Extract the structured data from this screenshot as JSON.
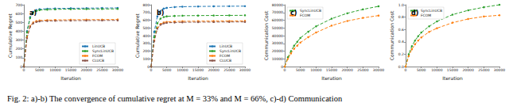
{
  "caption": "Fig. 2: a)-b) The convergence of cumulative regret at M = 33% and M = 66%, c)-d) Communication",
  "chart_data": [
    {
      "type": "line",
      "label": "a)",
      "x_label": "Iteration",
      "y_label": "Cumulative Regret",
      "x": [
        0,
        1000,
        2000,
        3000,
        4000,
        5000,
        7500,
        10000,
        15000,
        20000,
        25000,
        30000
      ],
      "xlim": [
        0,
        30000
      ],
      "xticks": [
        0,
        5000,
        10000,
        15000,
        20000,
        25000,
        30000
      ],
      "ylim": [
        0,
        700
      ],
      "yticks": [
        0,
        100,
        200,
        300,
        400,
        500,
        600,
        700
      ],
      "grid": false,
      "legend": "lower right",
      "series": [
        {
          "name": "LinUCB",
          "color": "#1f77b4",
          "marker": "circle",
          "line_style": "dashed",
          "values": [
            0,
            400,
            560,
            620,
            640,
            650,
            655,
            658,
            660,
            662,
            663,
            664
          ]
        },
        {
          "name": "SyncLinUCB",
          "color": "#2ca02c",
          "marker": "circle",
          "line_style": "dashed",
          "values": [
            0,
            390,
            550,
            610,
            630,
            640,
            645,
            648,
            650,
            651,
            652,
            653
          ]
        },
        {
          "name": "FCOM",
          "color": "#ff7f0e",
          "marker": "circle",
          "line_style": "dashed",
          "values": [
            0,
            330,
            460,
            500,
            515,
            522,
            526,
            528,
            530,
            531,
            532,
            533
          ]
        },
        {
          "name": "CLUCB",
          "color": "#8c564b",
          "marker": "circle",
          "line_style": "dashed",
          "values": [
            0,
            320,
            450,
            490,
            505,
            512,
            516,
            518,
            520,
            521,
            522,
            523
          ]
        }
      ]
    },
    {
      "type": "line",
      "label": "b)",
      "x_label": "Iteration",
      "y_label": "Cumulative Regret",
      "x": [
        0,
        1000,
        2000,
        3000,
        4000,
        5000,
        7500,
        10000,
        15000,
        20000,
        25000,
        30000
      ],
      "xlim": [
        0,
        30000
      ],
      "xticks": [
        0,
        5000,
        10000,
        15000,
        20000,
        25000,
        30000
      ],
      "ylim": [
        0,
        800
      ],
      "yticks": [
        0,
        100,
        200,
        300,
        400,
        500,
        600,
        700,
        800
      ],
      "grid": false,
      "legend": "lower right",
      "series": [
        {
          "name": "LinUCB",
          "color": "#1f77b4",
          "marker": "circle",
          "line_style": "dashed",
          "values": [
            0,
            450,
            650,
            720,
            750,
            760,
            770,
            775,
            778,
            780,
            781,
            782
          ]
        },
        {
          "name": "SyncLinUCB",
          "color": "#2ca02c",
          "marker": "circle",
          "line_style": "dashed",
          "values": [
            0,
            380,
            560,
            620,
            640,
            650,
            655,
            658,
            660,
            661,
            662,
            663
          ]
        },
        {
          "name": "FCOM",
          "color": "#ff7f0e",
          "marker": "circle",
          "line_style": "dashed",
          "values": [
            0,
            340,
            500,
            550,
            570,
            578,
            583,
            586,
            588,
            589,
            590,
            591
          ]
        },
        {
          "name": "CLUCB",
          "color": "#8c564b",
          "marker": "circle",
          "line_style": "dashed",
          "values": [
            0,
            330,
            490,
            540,
            558,
            566,
            570,
            573,
            575,
            576,
            577,
            578
          ]
        }
      ]
    },
    {
      "type": "line",
      "label": "c)",
      "x_label": "Iteration",
      "y_label": "Communication Cost",
      "x": [
        0,
        1000,
        2000,
        3000,
        4000,
        5000,
        7500,
        10000,
        15000,
        20000,
        25000,
        30000
      ],
      "xlim": [
        0,
        30000
      ],
      "xticks": [
        0,
        5000,
        10000,
        15000,
        20000,
        25000,
        30000
      ],
      "ylim": [
        0,
        80000
      ],
      "yticks": [
        0,
        10000,
        20000,
        30000,
        40000,
        50000,
        60000,
        70000,
        80000
      ],
      "grid": false,
      "legend": "upper left",
      "series": [
        {
          "name": "SyncLinUCB",
          "color": "#2ca02c",
          "marker": "circle",
          "line_style": "dashed",
          "values": [
            0,
            12000,
            20000,
            27000,
            32000,
            37000,
            45000,
            52000,
            62000,
            69000,
            74000,
            78000
          ]
        },
        {
          "name": "FCOM",
          "color": "#ff7f0e",
          "marker": "circle",
          "line_style": "dashed",
          "values": [
            0,
            10000,
            17000,
            23000,
            27000,
            31000,
            38000,
            44000,
            53000,
            59000,
            63000,
            66000
          ]
        }
      ]
    },
    {
      "type": "line",
      "label": "d)",
      "x_label": "Iteration",
      "y_label": "Communication Cost",
      "x": [
        0,
        1000,
        2000,
        3000,
        4000,
        5000,
        7500,
        10000,
        15000,
        20000,
        25000,
        30000
      ],
      "xlim": [
        0,
        30000
      ],
      "xticks": [
        0,
        5000,
        10000,
        15000,
        20000,
        25000,
        30000
      ],
      "ylim": [
        0,
        1.0
      ],
      "yticks": [
        {
          "value": 0,
          "label": "0.0"
        },
        0.2,
        0.4,
        0.6,
        0.8,
        {
          "value": 1.0,
          "label": "1.0"
        }
      ],
      "grid": false,
      "legend": "upper left",
      "series": [
        {
          "name": "SyncLinUCB",
          "color": "#2ca02c",
          "marker": "circle",
          "line_style": "dashed",
          "values": [
            0,
            0.2,
            0.33,
            0.42,
            0.49,
            0.55,
            0.65,
            0.73,
            0.84,
            0.91,
            0.96,
            1.0
          ]
        },
        {
          "name": "FCOM",
          "color": "#ff7f0e",
          "marker": "circle",
          "line_style": "dashed",
          "values": [
            0,
            0.17,
            0.28,
            0.36,
            0.42,
            0.47,
            0.56,
            0.62,
            0.71,
            0.77,
            0.81,
            0.83
          ]
        }
      ]
    }
  ]
}
